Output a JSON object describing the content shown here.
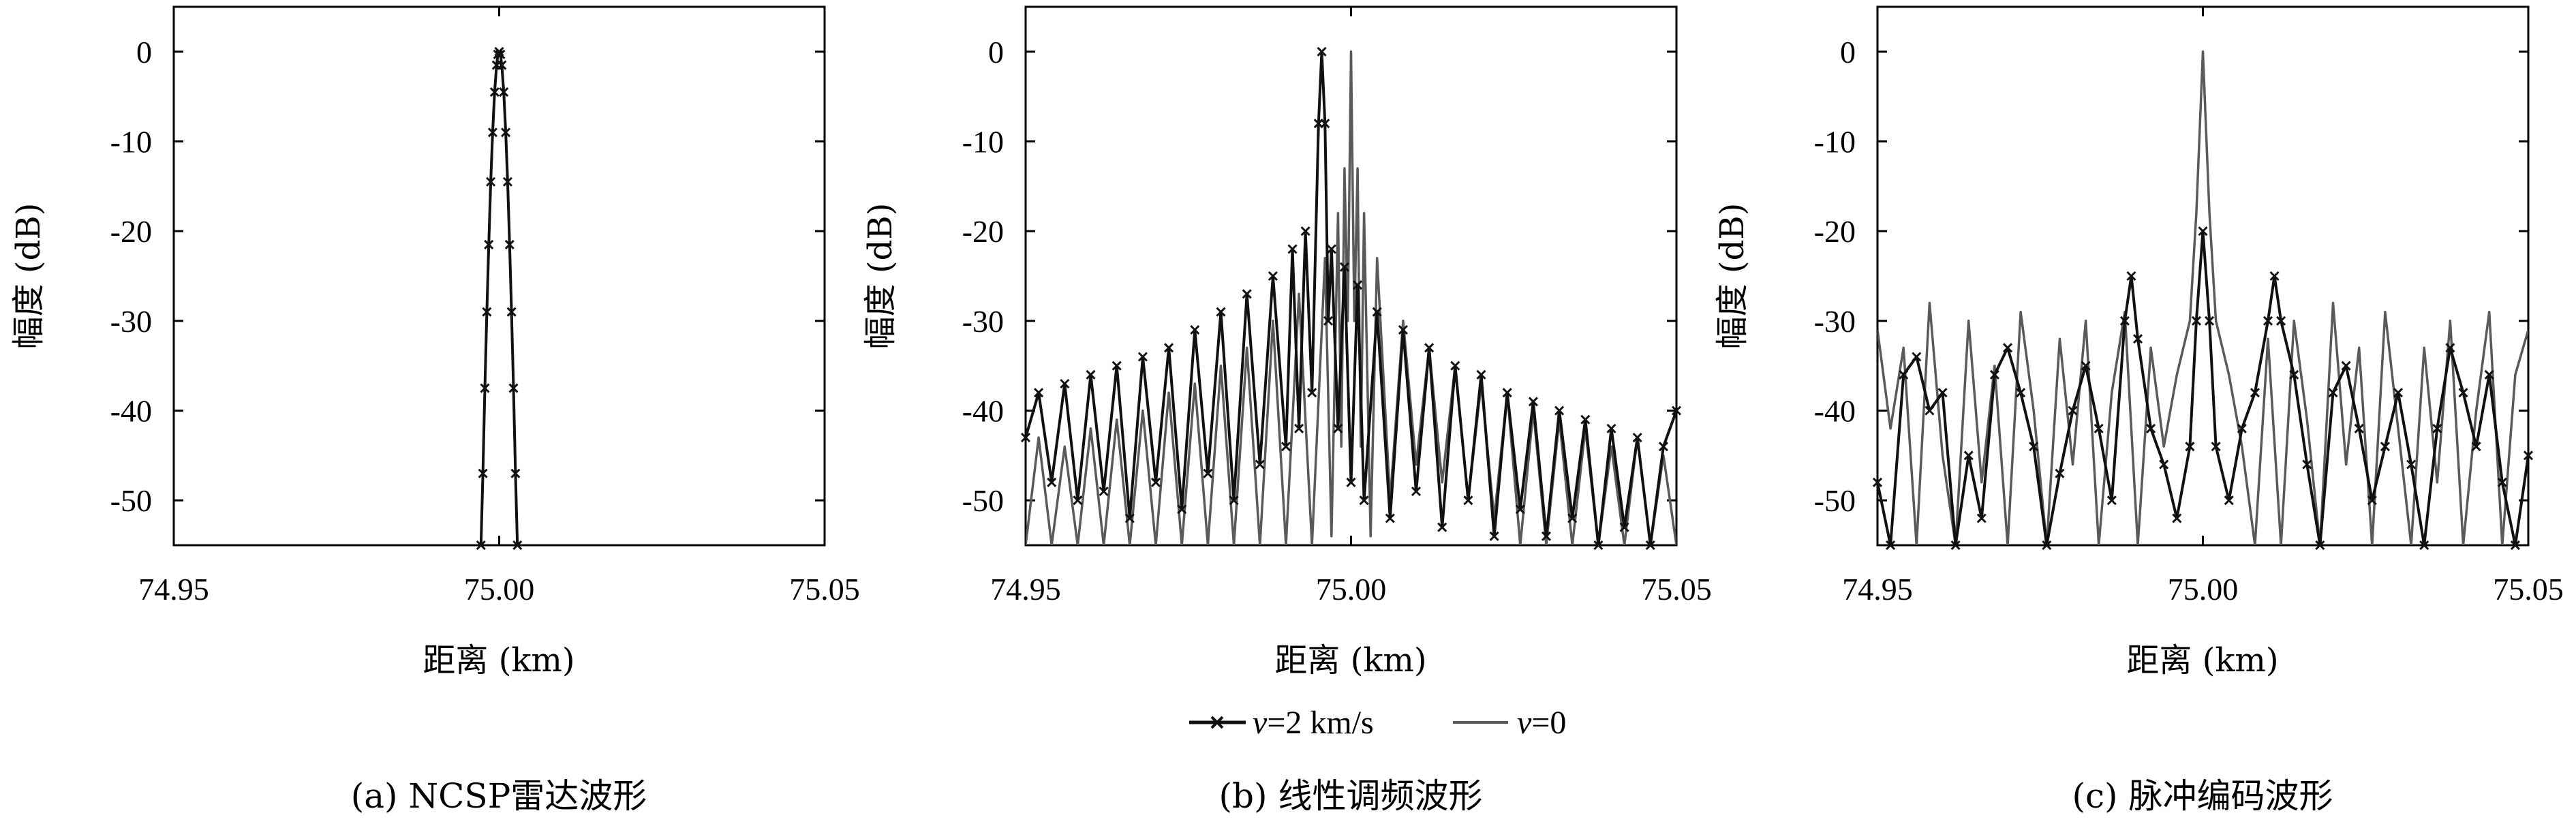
{
  "colors": {
    "moving": "#111111",
    "static": "#5a5a5a",
    "axis": "#000000"
  },
  "legend": [
    {
      "series": "v=2 km/s",
      "marker": "x-marker",
      "label_italic": "v",
      "label_rest": "=2 km/s"
    },
    {
      "series": "v=0",
      "marker": "none",
      "label_italic": "v",
      "label_rest": "=0"
    }
  ],
  "chart_data": [
    {
      "type": "line",
      "caption": "(a) NCSP雷达波形",
      "xlabel": "距离 (km)",
      "ylabel": "幅度 (dB)",
      "xlim": [
        74.95,
        75.05
      ],
      "ylim": [
        -55,
        5
      ],
      "xticks": [
        74.95,
        75.0,
        75.05
      ],
      "xtick_labels": [
        "74.95",
        "75.00",
        "75.05"
      ],
      "yticks": [
        0,
        -10,
        -20,
        -30,
        -40,
        -50
      ],
      "ytick_labels": [
        "0",
        "-10",
        "-20",
        "-30",
        "-40",
        "-50"
      ],
      "grid": false,
      "series": [
        {
          "name": "v=0",
          "style": "static",
          "x": [
            74.9972,
            74.9975,
            74.9978,
            74.9981,
            74.9984,
            74.9987,
            74.999,
            74.9993,
            74.9996,
            74.9998,
            75.0,
            75.0002,
            75.0004,
            75.0007,
            75.001,
            75.0013,
            75.0016,
            75.0019,
            75.0022,
            75.0025,
            75.0028
          ],
          "y": [
            -55,
            -47,
            -37.5,
            -29,
            -21.5,
            -14.5,
            -9,
            -4.5,
            -1.5,
            -0.3,
            0,
            -0.3,
            -1.5,
            -4.5,
            -9,
            -14.5,
            -21.5,
            -29,
            -37.5,
            -47,
            -55
          ]
        },
        {
          "name": "v=2 km/s",
          "style": "moving",
          "x": [
            74.9972,
            74.9975,
            74.9978,
            74.9981,
            74.9984,
            74.9987,
            74.999,
            74.9993,
            74.9996,
            74.9998,
            75.0,
            75.0002,
            75.0004,
            75.0007,
            75.001,
            75.0013,
            75.0016,
            75.0019,
            75.0022,
            75.0025,
            75.0028
          ],
          "y": [
            -55,
            -47,
            -37.5,
            -29,
            -21.5,
            -14.5,
            -9,
            -4.5,
            -1.5,
            -0.3,
            0,
            -0.3,
            -1.5,
            -4.5,
            -9,
            -14.5,
            -21.5,
            -29,
            -37.5,
            -47,
            -55
          ]
        }
      ]
    },
    {
      "type": "line",
      "caption": "(b) 线性调频波形",
      "xlabel": "距离 (km)",
      "ylabel": "幅度 (dB)",
      "xlim": [
        74.95,
        75.05
      ],
      "ylim": [
        -55,
        5
      ],
      "xticks": [
        74.95,
        75.0,
        75.05
      ],
      "xtick_labels": [
        "74.95",
        "75.00",
        "75.05"
      ],
      "yticks": [
        0,
        -10,
        -20,
        -30,
        -40,
        -50
      ],
      "ytick_labels": [
        "0",
        "-10",
        "-20",
        "-30",
        "-40",
        "-50"
      ],
      "grid": false,
      "series": [
        {
          "name": "v=0",
          "style": "static",
          "x": [
            74.95,
            74.952,
            74.954,
            74.956,
            74.958,
            74.96,
            74.962,
            74.964,
            74.966,
            74.968,
            74.97,
            74.972,
            74.974,
            74.976,
            74.978,
            74.98,
            74.982,
            74.984,
            74.986,
            74.988,
            74.99,
            74.992,
            74.994,
            74.996,
            74.997,
            74.998,
            74.9985,
            74.999,
            74.9995,
            75.0,
            75.0005,
            75.001,
            75.0015,
            75.002,
            75.003,
            75.004,
            75.006,
            75.008,
            75.01,
            75.012,
            75.014,
            75.016,
            75.018,
            75.02,
            75.022,
            75.024,
            75.026,
            75.028,
            75.03,
            75.032,
            75.034,
            75.036,
            75.038,
            75.04,
            75.042,
            75.044,
            75.046,
            75.048,
            75.05
          ],
          "y": [
            -55,
            -43,
            -55,
            -44,
            -55,
            -42,
            -55,
            -41,
            -55,
            -40,
            -55,
            -38,
            -55,
            -37,
            -55,
            -35,
            -55,
            -33,
            -55,
            -30,
            -55,
            -27,
            -55,
            -23,
            -54,
            -18,
            -44,
            -13,
            -30,
            0,
            -30,
            -13,
            -44,
            -18,
            -54,
            -23,
            -50,
            -30,
            -46,
            -33,
            -48,
            -35,
            -50,
            -37,
            -52,
            -38,
            -55,
            -40,
            -55,
            -41,
            -55,
            -42,
            -55,
            -44,
            -55,
            -43,
            -55,
            -45,
            -55
          ]
        },
        {
          "name": "v=2 km/s",
          "style": "moving",
          "x": [
            74.95,
            74.952,
            74.954,
            74.956,
            74.958,
            74.96,
            74.962,
            74.964,
            74.966,
            74.968,
            74.97,
            74.972,
            74.974,
            74.976,
            74.978,
            74.98,
            74.982,
            74.984,
            74.986,
            74.988,
            74.99,
            74.991,
            74.992,
            74.993,
            74.994,
            74.995,
            74.9955,
            74.996,
            74.9965,
            74.997,
            74.998,
            74.999,
            75.0,
            75.001,
            75.002,
            75.004,
            75.006,
            75.008,
            75.01,
            75.012,
            75.014,
            75.016,
            75.018,
            75.02,
            75.022,
            75.024,
            75.026,
            75.028,
            75.03,
            75.032,
            75.034,
            75.036,
            75.038,
            75.04,
            75.042,
            75.044,
            75.046,
            75.048,
            75.05
          ],
          "y": [
            -43,
            -38,
            -48,
            -37,
            -50,
            -36,
            -49,
            -35,
            -52,
            -34,
            -48,
            -33,
            -51,
            -31,
            -47,
            -29,
            -50,
            -27,
            -46,
            -25,
            -44,
            -22,
            -42,
            -20,
            -38,
            -8,
            0,
            -8,
            -30,
            -22,
            -42,
            -24,
            -48,
            -26,
            -50,
            -29,
            -52,
            -31,
            -49,
            -33,
            -53,
            -35,
            -50,
            -36,
            -54,
            -38,
            -51,
            -39,
            -54,
            -40,
            -52,
            -41,
            -55,
            -42,
            -53,
            -43,
            -55,
            -44,
            -40
          ]
        }
      ]
    },
    {
      "type": "line",
      "caption": "(c) 脉冲编码波形",
      "xlabel": "距离 (km)",
      "ylabel": "幅度 (dB)",
      "xlim": [
        74.95,
        75.05
      ],
      "ylim": [
        -55,
        5
      ],
      "xticks": [
        74.95,
        75.0,
        75.05
      ],
      "xtick_labels": [
        "74.95",
        "75.00",
        "75.05"
      ],
      "yticks": [
        0,
        -10,
        -20,
        -30,
        -40,
        -50
      ],
      "ytick_labels": [
        "0",
        "-10",
        "-20",
        "-30",
        "-40",
        "-50"
      ],
      "grid": false,
      "series": [
        {
          "name": "v=0",
          "style": "static",
          "x": [
            74.95,
            74.952,
            74.954,
            74.956,
            74.958,
            74.96,
            74.962,
            74.964,
            74.966,
            74.968,
            74.97,
            74.972,
            74.974,
            74.976,
            74.978,
            74.98,
            74.982,
            74.984,
            74.986,
            74.988,
            74.99,
            74.992,
            74.994,
            74.996,
            74.998,
            74.999,
            75.0,
            75.001,
            75.002,
            75.004,
            75.006,
            75.008,
            75.01,
            75.012,
            75.014,
            75.016,
            75.018,
            75.02,
            75.022,
            75.024,
            75.026,
            75.028,
            75.03,
            75.032,
            75.034,
            75.036,
            75.038,
            75.04,
            75.042,
            75.044,
            75.046,
            75.048,
            75.05
          ],
          "y": [
            -31,
            -42,
            -33,
            -55,
            -28,
            -45,
            -55,
            -30,
            -48,
            -35,
            -55,
            -29,
            -40,
            -55,
            -32,
            -46,
            -30,
            -55,
            -38,
            -29,
            -55,
            -33,
            -44,
            -36,
            -30,
            -18,
            0,
            -18,
            -30,
            -36,
            -44,
            -55,
            -32,
            -55,
            -30,
            -41,
            -55,
            -28,
            -46,
            -33,
            -55,
            -29,
            -42,
            -55,
            -33,
            -48,
            -30,
            -55,
            -40,
            -29,
            -55,
            -36,
            -31
          ]
        },
        {
          "name": "v=2 km/s",
          "style": "moving",
          "x": [
            74.95,
            74.952,
            74.954,
            74.956,
            74.958,
            74.96,
            74.962,
            74.964,
            74.966,
            74.968,
            74.97,
            74.972,
            74.974,
            74.976,
            74.978,
            74.98,
            74.982,
            74.984,
            74.986,
            74.988,
            74.989,
            74.99,
            74.992,
            74.994,
            74.996,
            74.998,
            74.999,
            75.0,
            75.001,
            75.002,
            75.004,
            75.006,
            75.008,
            75.01,
            75.011,
            75.012,
            75.014,
            75.016,
            75.018,
            75.02,
            75.022,
            75.024,
            75.026,
            75.028,
            75.03,
            75.032,
            75.034,
            75.036,
            75.038,
            75.04,
            75.042,
            75.044,
            75.046,
            75.048,
            75.05
          ],
          "y": [
            -48,
            -55,
            -36,
            -34,
            -40,
            -38,
            -55,
            -45,
            -52,
            -36,
            -33,
            -38,
            -44,
            -55,
            -47,
            -40,
            -35,
            -42,
            -50,
            -30,
            -25,
            -32,
            -42,
            -46,
            -52,
            -44,
            -30,
            -20,
            -30,
            -44,
            -50,
            -42,
            -38,
            -30,
            -25,
            -30,
            -36,
            -46,
            -55,
            -38,
            -35,
            -42,
            -50,
            -44,
            -38,
            -46,
            -55,
            -42,
            -33,
            -38,
            -44,
            -36,
            -48,
            -55,
            -45
          ]
        }
      ]
    }
  ]
}
